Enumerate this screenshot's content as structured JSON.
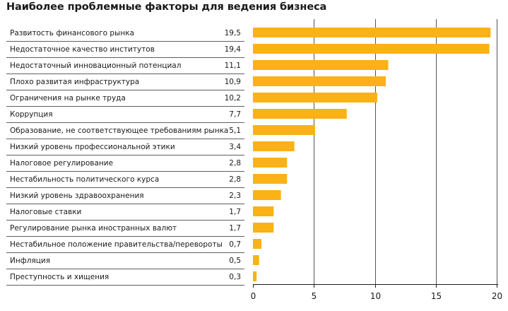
{
  "chart_data": {
    "type": "bar",
    "orientation": "horizontal",
    "title": "Наиболее проблемные факторы для ведения бизнеса",
    "categories": [
      "Развитость финансового рынка",
      "Недостаточное качество институтов",
      "Недостаточный инновационный потенциал",
      "Плохо развитая инфраструктура",
      "Ограничения на рынке труда",
      "Коррупция",
      "Образование, не соответствующее требованиям рынка",
      "Низкий уровень профессиональной этики",
      "Налоговое регулирование",
      "Нестабильность политического курса",
      "Низкий уровень здравоохранения",
      "Налоговые ставки",
      "Регулирование рынка иностранных валют",
      "Нестабильное положение правительства/перевороты",
      "Инфляция",
      "Преступность и хищения"
    ],
    "values": [
      19.5,
      19.4,
      11.1,
      10.9,
      10.2,
      7.7,
      5.1,
      3.4,
      2.8,
      2.8,
      2.3,
      1.7,
      1.7,
      0.7,
      0.5,
      0.3
    ],
    "value_labels": [
      "19,5",
      "19,4",
      "11,1",
      "10,9",
      "10,2",
      "7,7",
      "5,1",
      "3,4",
      "2,8",
      "2,8",
      "2,3",
      "1,7",
      "1,7",
      "0,7",
      "0,5",
      "0,3"
    ],
    "xlim": [
      0,
      20
    ],
    "xticks": [
      0,
      5,
      10,
      15,
      20
    ],
    "xtick_labels": [
      "0",
      "5",
      "10",
      "15",
      "20"
    ],
    "grid": true,
    "xlabel": "",
    "ylabel": ""
  },
  "colors": {
    "bar": "#fbb217",
    "grid": "#555555",
    "separator": "#2a2a2a",
    "axis": "#1a1a1a"
  }
}
